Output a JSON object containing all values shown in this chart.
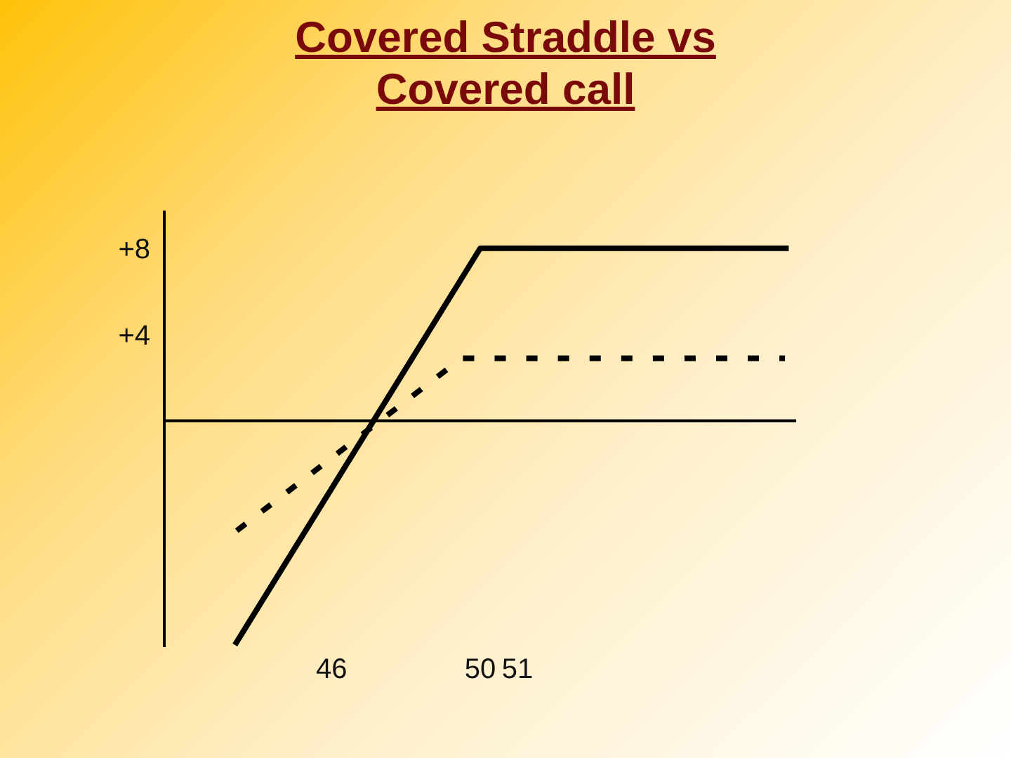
{
  "chart_data": {
    "type": "line",
    "title": "Covered Straddle vs Covered call",
    "xlim": [
      41.5,
      58.5
    ],
    "xticks": [
      46,
      50,
      51
    ],
    "ylim": [
      -10.5,
      9.75
    ],
    "yticks": [
      {
        "value": 8,
        "label": "+8"
      },
      {
        "value": 4,
        "label": "+4"
      }
    ],
    "series": [
      {
        "color": "#000000",
        "line_style": "solid",
        "x": [
          43.4,
          50,
          58.3
        ],
        "values": [
          -10.4,
          8,
          8
        ]
      },
      {
        "color": "#000000",
        "line_style": "dashed",
        "x": [
          43.45,
          49.5,
          58.2
        ],
        "values": [
          -5.1,
          2.9,
          2.9
        ]
      }
    ],
    "ref_lines": [
      {
        "axis": "y",
        "value": 0,
        "color": "#000000"
      }
    ],
    "marker": "none"
  }
}
